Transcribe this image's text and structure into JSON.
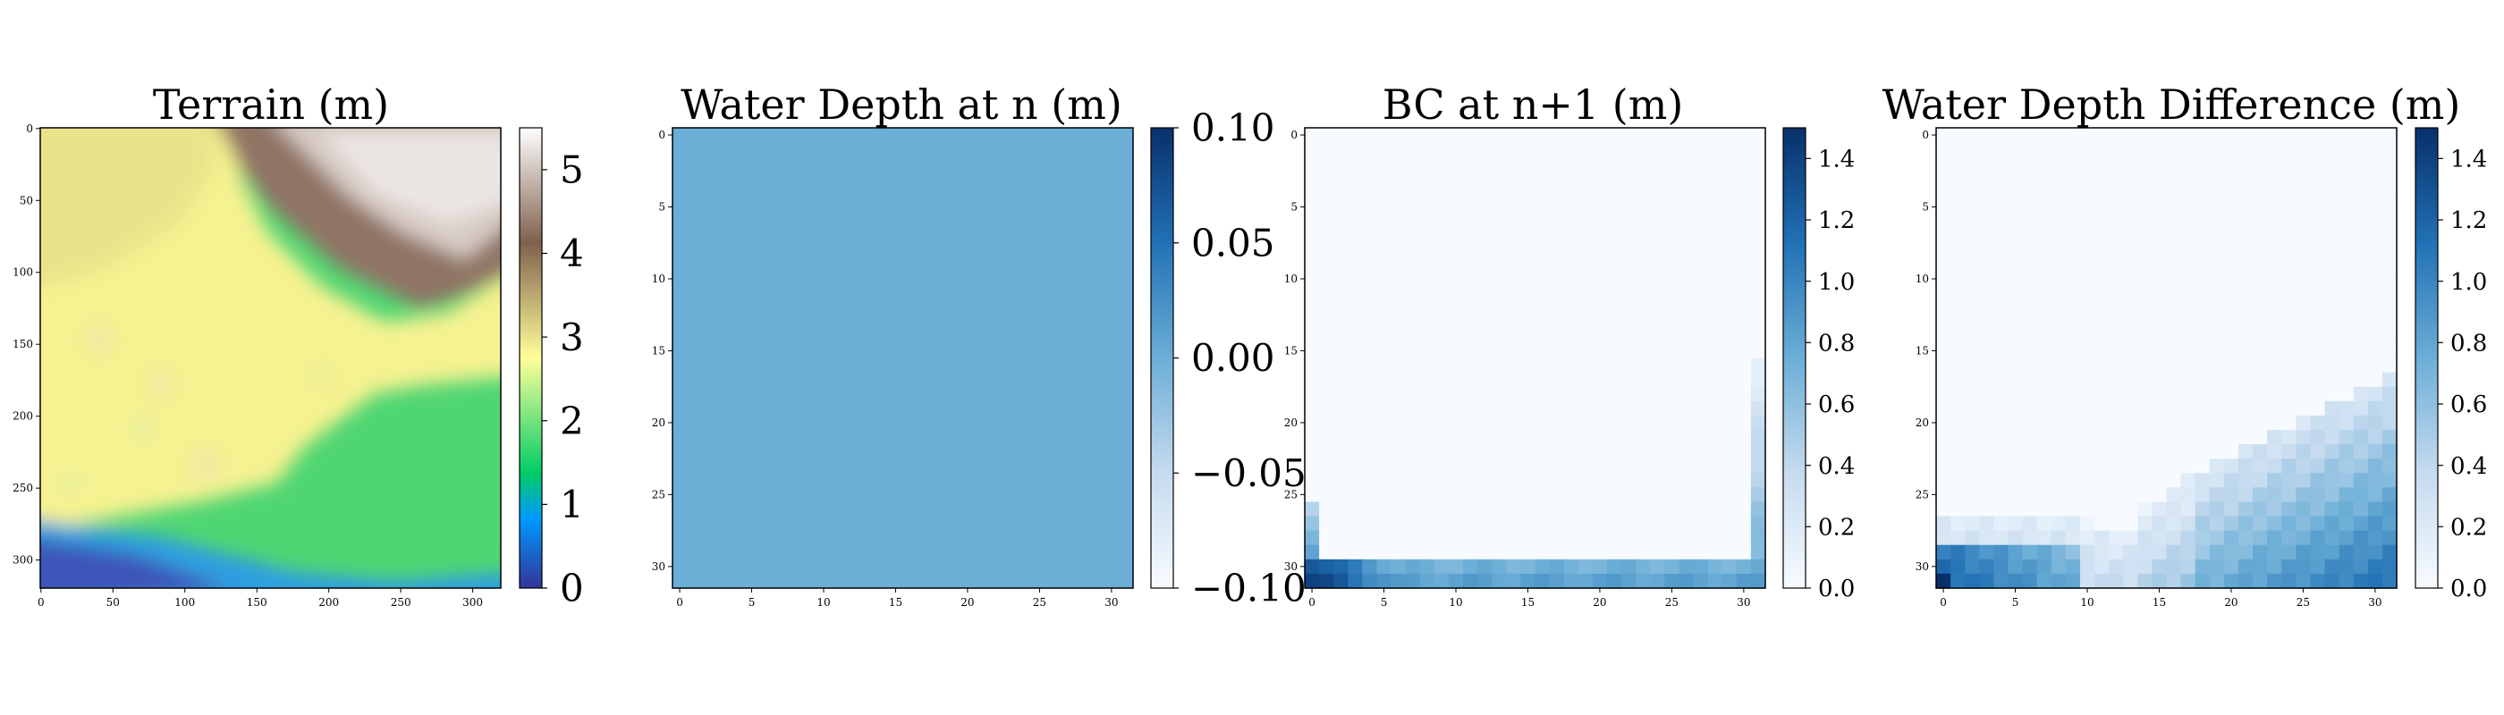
{
  "figure": {
    "panels": [
      {
        "title": "Terrain (m)"
      },
      {
        "title": "Water Depth at n (m)"
      },
      {
        "title": "BC at n+1 (m)"
      },
      {
        "title": "Water Depth Difference (m)"
      }
    ]
  },
  "chart_data": [
    {
      "type": "heatmap",
      "title": "Terrain (m)",
      "colormap": "terrain",
      "grid_size": [
        320,
        320
      ],
      "x_ticks": [
        0,
        50,
        100,
        150,
        200,
        250,
        300
      ],
      "y_ticks": [
        0,
        50,
        100,
        150,
        200,
        250,
        300
      ],
      "colorbar": {
        "range": [
          0,
          5.5
        ],
        "ticks": [
          "0",
          "1",
          "2",
          "3",
          "4",
          "5"
        ]
      },
      "description_values": {
        "bottom_left_min": 0.3,
        "high_brown_region_top_right": 5.2,
        "yellow_band": 3.0,
        "green_region_bottom_right": 1.8
      }
    },
    {
      "type": "heatmap",
      "title": "Water Depth at n (m)",
      "colormap": "Blues",
      "grid_size": [
        32,
        32
      ],
      "x_ticks": [
        0,
        5,
        10,
        15,
        20,
        25,
        30
      ],
      "y_ticks": [
        0,
        5,
        10,
        15,
        20,
        25,
        30
      ],
      "colorbar": {
        "range": [
          -0.1,
          0.1
        ],
        "ticks": [
          "0.10",
          "0.05",
          "0.00",
          "−0.05",
          "−0.10"
        ]
      },
      "uniform_value": 0.0,
      "uniform_color": "#6baed6"
    },
    {
      "type": "heatmap",
      "title": "BC at n+1 (m)",
      "colormap": "Blues",
      "grid_size": [
        32,
        32
      ],
      "x_ticks": [
        0,
        5,
        10,
        15,
        20,
        25,
        30
      ],
      "y_ticks": [
        0,
        5,
        10,
        15,
        20,
        25,
        30
      ],
      "colorbar": {
        "range": [
          0,
          1.5
        ],
        "ticks": [
          "1.4",
          "1.2",
          "1.0",
          "0.8",
          "0.6",
          "0.4",
          "0.2",
          "0.0"
        ]
      },
      "boundary": {
        "bottom_rows": [
          30,
          31
        ],
        "left_columns": [
          0
        ],
        "right_columns": [
          31
        ],
        "max_value": 1.5
      }
    },
    {
      "type": "heatmap",
      "title": "Water Depth Difference (m)",
      "colormap": "Blues",
      "grid_size": [
        32,
        32
      ],
      "x_ticks": [
        0,
        5,
        10,
        15,
        20,
        25,
        30
      ],
      "y_ticks": [
        0,
        5,
        10,
        15,
        20,
        25,
        30
      ],
      "colorbar": {
        "range": [
          0,
          1.5
        ],
        "ticks": [
          "1.4",
          "1.2",
          "1.0",
          "0.8",
          "0.6",
          "0.4",
          "0.2",
          "0.0"
        ]
      },
      "max_value": 1.5
    }
  ]
}
